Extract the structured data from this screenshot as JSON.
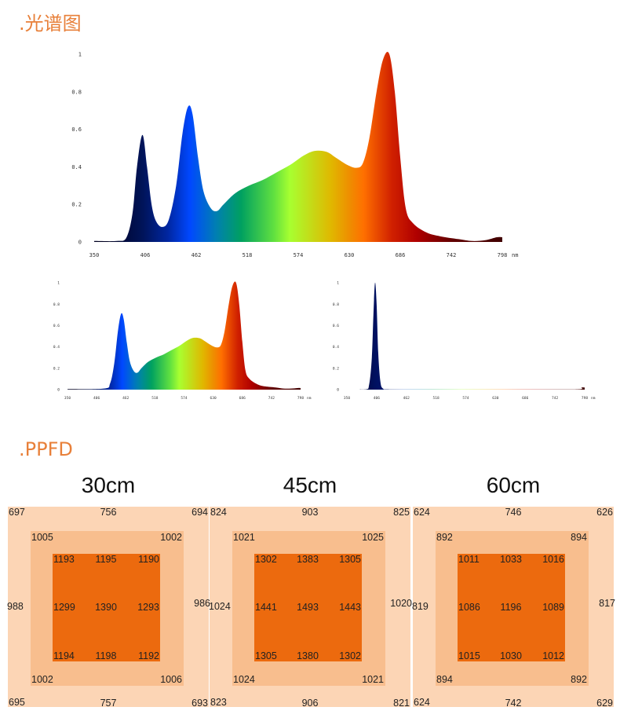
{
  "spectrum": {
    "title": ".光谱图"
  },
  "ppfd": {
    "title": ".PPFD",
    "grids": [
      {
        "height": "30cm",
        "outer": {
          "tl": "697",
          "top": "756",
          "tr": "694",
          "left": "988",
          "right": "986",
          "bl": "695",
          "bottom": "757",
          "br": "693"
        },
        "middle": {
          "tl": "1005",
          "tr": "1002",
          "bl": "1002",
          "br": "1006"
        },
        "inner": [
          [
            "1193",
            "1195",
            "1190"
          ],
          [
            "1299",
            "1390",
            "1293"
          ],
          [
            "1194",
            "1198",
            "1192"
          ]
        ]
      },
      {
        "height": "45cm",
        "outer": {
          "tl": "824",
          "top": "903",
          "tr": "825",
          "left": "1024",
          "right": "1020",
          "bl": "823",
          "bottom": "906",
          "br": "821"
        },
        "middle": {
          "tl": "1021",
          "tr": "1025",
          "bl": "1024",
          "br": "1021"
        },
        "inner": [
          [
            "1302",
            "1383",
            "1305"
          ],
          [
            "1441",
            "1493",
            "1443"
          ],
          [
            "1305",
            "1380",
            "1302"
          ]
        ]
      },
      {
        "height": "60cm",
        "outer": {
          "tl": "624",
          "top": "746",
          "tr": "626",
          "left": "819",
          "right": "817",
          "bl": "624",
          "bottom": "742",
          "br": "629"
        },
        "middle": {
          "tl": "892",
          "tr": "894",
          "bl": "894",
          "br": "892"
        },
        "inner": [
          [
            "1011",
            "1033",
            "1016"
          ],
          [
            "1086",
            "1196",
            "1089"
          ],
          [
            "1015",
            "1030",
            "1012"
          ]
        ]
      }
    ],
    "colors": {
      "outer": "#fcd5b5",
      "middle": "#f8be8e",
      "inner": "#ec6a0e"
    }
  },
  "chart_data": [
    {
      "type": "area",
      "xlim": [
        350,
        798
      ],
      "ylim": [
        0,
        1
      ],
      "x_unit": "nm",
      "xticks": [
        "350",
        "406",
        "462",
        "518",
        "574",
        "630",
        "686",
        "742",
        "798"
      ],
      "yticks": [
        "0",
        "0.2",
        "0.4",
        "0.6",
        "0.8",
        "1"
      ],
      "x": [
        350,
        375,
        385,
        392,
        397,
        403,
        408,
        413,
        418,
        425,
        432,
        440,
        447,
        453,
        458,
        464,
        470,
        478,
        485,
        492,
        505,
        520,
        535,
        550,
        565,
        580,
        592,
        605,
        615,
        628,
        638,
        645,
        652,
        660,
        667,
        674,
        680,
        686,
        692,
        700,
        715,
        730,
        750,
        765,
        780,
        792,
        798
      ],
      "y": [
        0.005,
        0.005,
        0.02,
        0.15,
        0.4,
        0.57,
        0.4,
        0.2,
        0.11,
        0.08,
        0.12,
        0.3,
        0.58,
        0.72,
        0.68,
        0.45,
        0.27,
        0.18,
        0.165,
        0.2,
        0.26,
        0.3,
        0.33,
        0.37,
        0.41,
        0.46,
        0.485,
        0.48,
        0.45,
        0.41,
        0.395,
        0.42,
        0.55,
        0.8,
        0.97,
        1.0,
        0.8,
        0.45,
        0.18,
        0.1,
        0.05,
        0.03,
        0.015,
        0.005,
        0.01,
        0.025,
        0.025
      ]
    },
    {
      "type": "area",
      "xlim": [
        350,
        798
      ],
      "ylim": [
        0,
        1
      ],
      "x_unit": "nm",
      "xticks": [
        "350",
        "406",
        "462",
        "518",
        "574",
        "630",
        "686",
        "742",
        "798"
      ],
      "yticks": [
        "0",
        "0.2",
        "0.4",
        "0.6",
        "0.8",
        "1"
      ],
      "x": [
        350,
        420,
        432,
        440,
        447,
        453,
        458,
        464,
        470,
        478,
        485,
        492,
        505,
        520,
        535,
        550,
        565,
        580,
        592,
        605,
        615,
        628,
        638,
        645,
        652,
        660,
        667,
        674,
        680,
        686,
        692,
        700,
        715,
        730,
        750,
        765,
        780,
        792,
        798
      ],
      "y": [
        0.005,
        0.01,
        0.06,
        0.25,
        0.55,
        0.71,
        0.66,
        0.44,
        0.26,
        0.17,
        0.16,
        0.2,
        0.26,
        0.3,
        0.33,
        0.37,
        0.41,
        0.46,
        0.485,
        0.48,
        0.45,
        0.41,
        0.395,
        0.42,
        0.55,
        0.8,
        0.97,
        1.0,
        0.8,
        0.45,
        0.18,
        0.1,
        0.05,
        0.03,
        0.02,
        0.01,
        0.01,
        0.015,
        0.015
      ]
    },
    {
      "type": "area",
      "xlim": [
        350,
        798
      ],
      "ylim": [
        0,
        1
      ],
      "x_unit": "nm",
      "xticks": [
        "350",
        "406",
        "462",
        "518",
        "574",
        "630",
        "686",
        "742",
        "798"
      ],
      "yticks": [
        "0",
        "0.2",
        "0.4",
        "0.6",
        "0.8",
        "1"
      ],
      "x": [
        350,
        385,
        392,
        397,
        400,
        403,
        406,
        409,
        413,
        418,
        430,
        500,
        600,
        700,
        785,
        792,
        798
      ],
      "y": [
        0,
        0.002,
        0.05,
        0.3,
        0.7,
        1.0,
        0.8,
        0.35,
        0.08,
        0.01,
        0.002,
        0.002,
        0.002,
        0.002,
        0.003,
        0.02,
        0.02
      ]
    }
  ]
}
